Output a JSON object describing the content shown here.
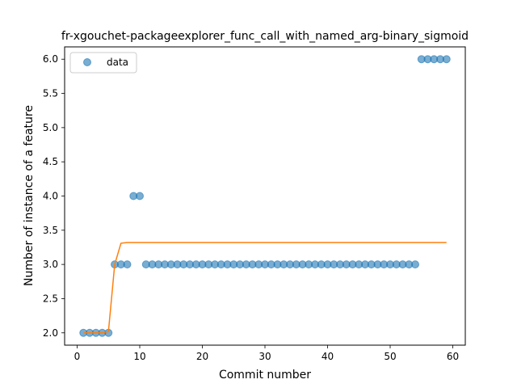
{
  "chart_data": {
    "type": "scatter",
    "title": "fr-xgouchet-packageexplorer_func_call_with_named_arg-binary_sigmoid",
    "xlabel": "Commit number",
    "ylabel": "Number of instance of a feature",
    "xlim": [
      -2,
      62
    ],
    "ylim": [
      1.82,
      6.18
    ],
    "xticks": [
      0,
      10,
      20,
      30,
      40,
      50,
      60
    ],
    "yticks": [
      2.0,
      2.5,
      3.0,
      3.5,
      4.0,
      4.5,
      5.0,
      5.5,
      6.0
    ],
    "legend": {
      "placement": "top-left",
      "entries": [
        "data"
      ]
    },
    "colors": {
      "points": "#1f77b4",
      "fit": "#ff7f0e"
    },
    "series": [
      {
        "name": "data",
        "kind": "scatter",
        "x": [
          1,
          2,
          3,
          4,
          5,
          6,
          7,
          8,
          9,
          10,
          11,
          12,
          13,
          14,
          15,
          16,
          17,
          18,
          19,
          20,
          21,
          22,
          23,
          24,
          25,
          26,
          27,
          28,
          29,
          30,
          31,
          32,
          33,
          34,
          35,
          36,
          37,
          38,
          39,
          40,
          41,
          42,
          43,
          44,
          45,
          46,
          47,
          48,
          49,
          50,
          51,
          52,
          53,
          54,
          55,
          56,
          57,
          58,
          59
        ],
        "y": [
          2,
          2,
          2,
          2,
          2,
          3,
          3,
          3,
          4,
          4,
          3,
          3,
          3,
          3,
          3,
          3,
          3,
          3,
          3,
          3,
          3,
          3,
          3,
          3,
          3,
          3,
          3,
          3,
          3,
          3,
          3,
          3,
          3,
          3,
          3,
          3,
          3,
          3,
          3,
          3,
          3,
          3,
          3,
          3,
          3,
          3,
          3,
          3,
          3,
          3,
          3,
          3,
          3,
          3,
          6,
          6,
          6,
          6,
          6
        ]
      },
      {
        "kind": "line",
        "x": [
          1,
          2,
          3,
          4,
          5,
          6,
          7,
          8,
          9,
          10,
          20,
          30,
          40,
          50,
          59
        ],
        "y": [
          2.0,
          2.0,
          2.0,
          2.0,
          2.02,
          3.0,
          3.31,
          3.32,
          3.32,
          3.32,
          3.32,
          3.32,
          3.32,
          3.32,
          3.32
        ]
      }
    ]
  }
}
